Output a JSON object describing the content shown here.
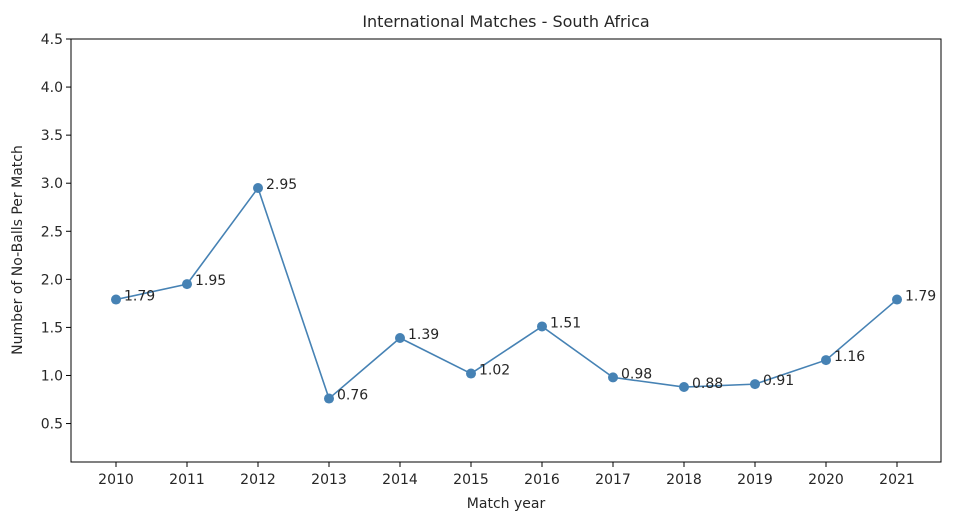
{
  "chart_data": {
    "type": "line",
    "title": "International Matches - South Africa",
    "xlabel": "Match year",
    "ylabel": "Number of No-Balls Per Match",
    "categories": [
      "2010",
      "2011",
      "2012",
      "2013",
      "2014",
      "2015",
      "2016",
      "2017",
      "2018",
      "2019",
      "2020",
      "2021"
    ],
    "series": [
      {
        "values": [
          1.79,
          1.95,
          2.95,
          0.76,
          1.39,
          1.02,
          1.51,
          0.98,
          0.88,
          0.91,
          1.16,
          1.79
        ],
        "labels": [
          "1.79",
          "1.95",
          "2.95",
          "0.76",
          "1.39",
          "1.02",
          "1.51",
          "0.98",
          "0.88",
          "0.91",
          "1.16",
          "1.79"
        ],
        "color": "#4682b4"
      }
    ],
    "ylim": [
      0.1,
      4.5
    ],
    "yticks": [
      "0.5",
      "1.0",
      "1.5",
      "2.0",
      "2.5",
      "3.0",
      "3.5",
      "4.0",
      "4.5"
    ],
    "grid": false
  }
}
